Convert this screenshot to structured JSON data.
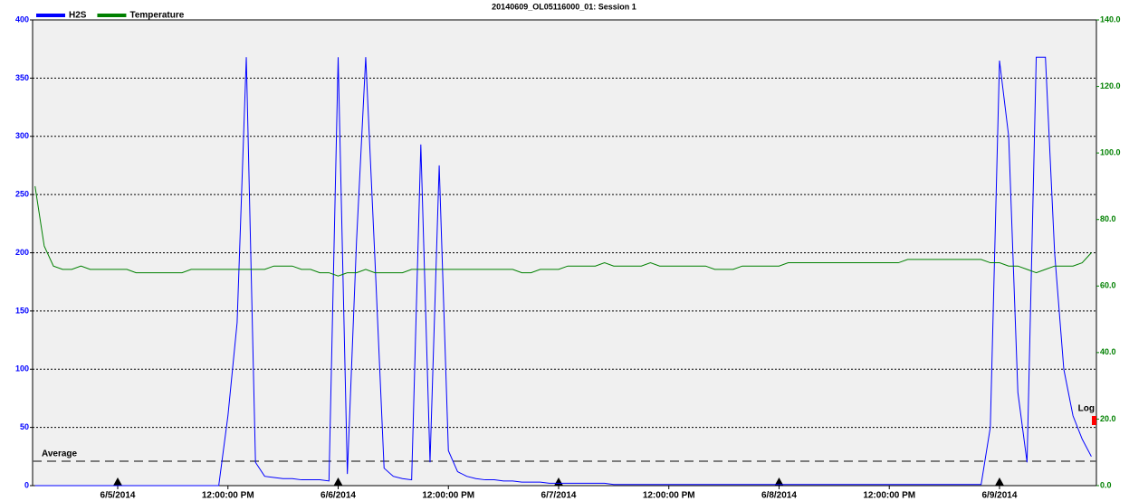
{
  "chart_data": {
    "type": "line",
    "title": "20140609_OL05116000_01: Session 1",
    "x": [
      "2014-06-04 15:00",
      "2014-06-04 16:00",
      "2014-06-04 17:00",
      "2014-06-04 18:00",
      "2014-06-04 19:00",
      "2014-06-04 20:00",
      "2014-06-04 21:00",
      "2014-06-04 22:00",
      "2014-06-04 23:00",
      "2014-06-05 00:00",
      "2014-06-05 01:00",
      "2014-06-05 02:00",
      "2014-06-05 03:00",
      "2014-06-05 04:00",
      "2014-06-05 05:00",
      "2014-06-05 06:00",
      "2014-06-05 07:00",
      "2014-06-05 08:00",
      "2014-06-05 09:00",
      "2014-06-05 10:00",
      "2014-06-05 11:00",
      "2014-06-05 12:00",
      "2014-06-05 13:00",
      "2014-06-05 14:00",
      "2014-06-05 15:00",
      "2014-06-05 16:00",
      "2014-06-05 17:00",
      "2014-06-05 18:00",
      "2014-06-05 19:00",
      "2014-06-05 20:00",
      "2014-06-05 21:00",
      "2014-06-05 22:00",
      "2014-06-05 23:00",
      "2014-06-06 00:00",
      "2014-06-06 01:00",
      "2014-06-06 02:00",
      "2014-06-06 03:00",
      "2014-06-06 04:00",
      "2014-06-06 05:00",
      "2014-06-06 06:00",
      "2014-06-06 07:00",
      "2014-06-06 08:00",
      "2014-06-06 09:00",
      "2014-06-06 10:00",
      "2014-06-06 11:00",
      "2014-06-06 12:00",
      "2014-06-06 13:00",
      "2014-06-06 14:00",
      "2014-06-06 15:00",
      "2014-06-06 16:00",
      "2014-06-06 17:00",
      "2014-06-06 18:00",
      "2014-06-06 19:00",
      "2014-06-06 20:00",
      "2014-06-06 21:00",
      "2014-06-06 22:00",
      "2014-06-06 23:00",
      "2014-06-07 00:00",
      "2014-06-07 01:00",
      "2014-06-07 02:00",
      "2014-06-07 03:00",
      "2014-06-07 04:00",
      "2014-06-07 05:00",
      "2014-06-07 06:00",
      "2014-06-07 07:00",
      "2014-06-07 08:00",
      "2014-06-07 09:00",
      "2014-06-07 10:00",
      "2014-06-07 11:00",
      "2014-06-07 12:00",
      "2014-06-07 13:00",
      "2014-06-07 14:00",
      "2014-06-07 15:00",
      "2014-06-07 16:00",
      "2014-06-07 17:00",
      "2014-06-07 18:00",
      "2014-06-07 19:00",
      "2014-06-07 20:00",
      "2014-06-07 21:00",
      "2014-06-07 22:00",
      "2014-06-07 23:00",
      "2014-06-08 00:00",
      "2014-06-08 01:00",
      "2014-06-08 02:00",
      "2014-06-08 03:00",
      "2014-06-08 04:00",
      "2014-06-08 05:00",
      "2014-06-08 06:00",
      "2014-06-08 07:00",
      "2014-06-08 08:00",
      "2014-06-08 09:00",
      "2014-06-08 10:00",
      "2014-06-08 11:00",
      "2014-06-08 12:00",
      "2014-06-08 13:00",
      "2014-06-08 14:00",
      "2014-06-08 15:00",
      "2014-06-08 16:00",
      "2014-06-08 17:00",
      "2014-06-08 18:00",
      "2014-06-08 19:00",
      "2014-06-08 20:00",
      "2014-06-08 21:00",
      "2014-06-08 22:00",
      "2014-06-08 23:00",
      "2014-06-09 00:00",
      "2014-06-09 01:00",
      "2014-06-09 02:00",
      "2014-06-09 03:00",
      "2014-06-09 04:00",
      "2014-06-09 05:00",
      "2014-06-09 06:00",
      "2014-06-09 07:00",
      "2014-06-09 08:00",
      "2014-06-09 09:00",
      "2014-06-09 10:00"
    ],
    "series": [
      {
        "name": "H2S",
        "color": "#0000ff",
        "values": [
          0,
          0,
          0,
          0,
          0,
          0,
          0,
          0,
          0,
          0,
          0,
          0,
          0,
          0,
          0,
          0,
          0,
          0,
          0,
          0,
          0,
          60,
          140,
          368,
          20,
          8,
          7,
          6,
          6,
          5,
          5,
          5,
          4,
          368,
          10,
          210,
          368,
          195,
          15,
          8,
          6,
          5,
          293,
          20,
          275,
          30,
          12,
          8,
          6,
          5,
          5,
          4,
          4,
          3,
          3,
          3,
          2,
          2,
          2,
          2,
          2,
          2,
          2,
          1,
          1,
          1,
          1,
          1,
          1,
          1,
          1,
          1,
          1,
          1,
          1,
          1,
          1,
          1,
          1,
          1,
          1,
          1,
          1,
          1,
          1,
          1,
          1,
          1,
          1,
          1,
          1,
          1,
          1,
          1,
          1,
          1,
          1,
          1,
          1,
          1,
          1,
          1,
          1,
          1,
          50,
          365,
          300,
          80,
          20,
          368,
          368,
          200,
          100,
          60,
          40,
          25
        ]
      },
      {
        "name": "Temperature",
        "color": "#008000",
        "axis": "y2",
        "values": [
          90,
          72,
          66,
          65,
          65,
          66,
          65,
          65,
          65,
          65,
          65,
          64,
          64,
          64,
          64,
          64,
          64,
          65,
          65,
          65,
          65,
          65,
          65,
          65,
          65,
          65,
          66,
          66,
          66,
          65,
          65,
          64,
          64,
          63,
          64,
          64,
          65,
          64,
          64,
          64,
          64,
          65,
          65,
          65,
          65,
          65,
          65,
          65,
          65,
          65,
          65,
          65,
          65,
          64,
          64,
          65,
          65,
          65,
          66,
          66,
          66,
          66,
          67,
          66,
          66,
          66,
          66,
          67,
          66,
          66,
          66,
          66,
          66,
          66,
          65,
          65,
          65,
          66,
          66,
          66,
          66,
          66,
          67,
          67,
          67,
          67,
          67,
          67,
          67,
          67,
          67,
          67,
          67,
          67,
          67,
          68,
          68,
          68,
          68,
          68,
          68,
          68,
          68,
          68,
          67,
          67,
          66,
          66,
          65,
          64,
          65,
          66,
          66,
          66,
          67,
          70
        ]
      }
    ],
    "xlim": [
      "2014-06-04 14:44",
      "2014-06-09 10:33"
    ],
    "xticks": [
      {
        "value": "2014-06-05 00:00",
        "label": "6/5/2014"
      },
      {
        "value": "2014-06-05 12:00",
        "label": "12:00:00 PM"
      },
      {
        "value": "2014-06-06 00:00",
        "label": "6/6/2014"
      },
      {
        "value": "2014-06-06 12:00",
        "label": "12:00:00 PM"
      },
      {
        "value": "2014-06-07 00:00",
        "label": "6/7/2014"
      },
      {
        "value": "2014-06-07 12:00",
        "label": "12:00:00 PM"
      },
      {
        "value": "2014-06-08 00:00",
        "label": "6/8/2014"
      },
      {
        "value": "2014-06-08 12:00",
        "label": "12:00:00 PM"
      },
      {
        "value": "2014-06-09 00:00",
        "label": "6/9/2014"
      }
    ],
    "ylim": [
      0,
      400
    ],
    "yticks": [
      0,
      50,
      100,
      150,
      200,
      250,
      300,
      350,
      400
    ],
    "y2lim": [
      0,
      140
    ],
    "y2ticks": [
      {
        "value": 0,
        "label": "0.0"
      },
      {
        "value": 20,
        "label": "20.0"
      },
      {
        "value": 40,
        "label": "40.0"
      },
      {
        "value": 60,
        "label": "60.0"
      },
      {
        "value": 80,
        "label": "80.0"
      },
      {
        "value": 100,
        "label": "100.0"
      },
      {
        "value": 120,
        "label": "120.0"
      },
      {
        "value": 140,
        "label": "140.0"
      }
    ],
    "grid": true,
    "legend": "top-left",
    "average": {
      "label": "Average",
      "value": 21
    },
    "log_label": "Log"
  }
}
